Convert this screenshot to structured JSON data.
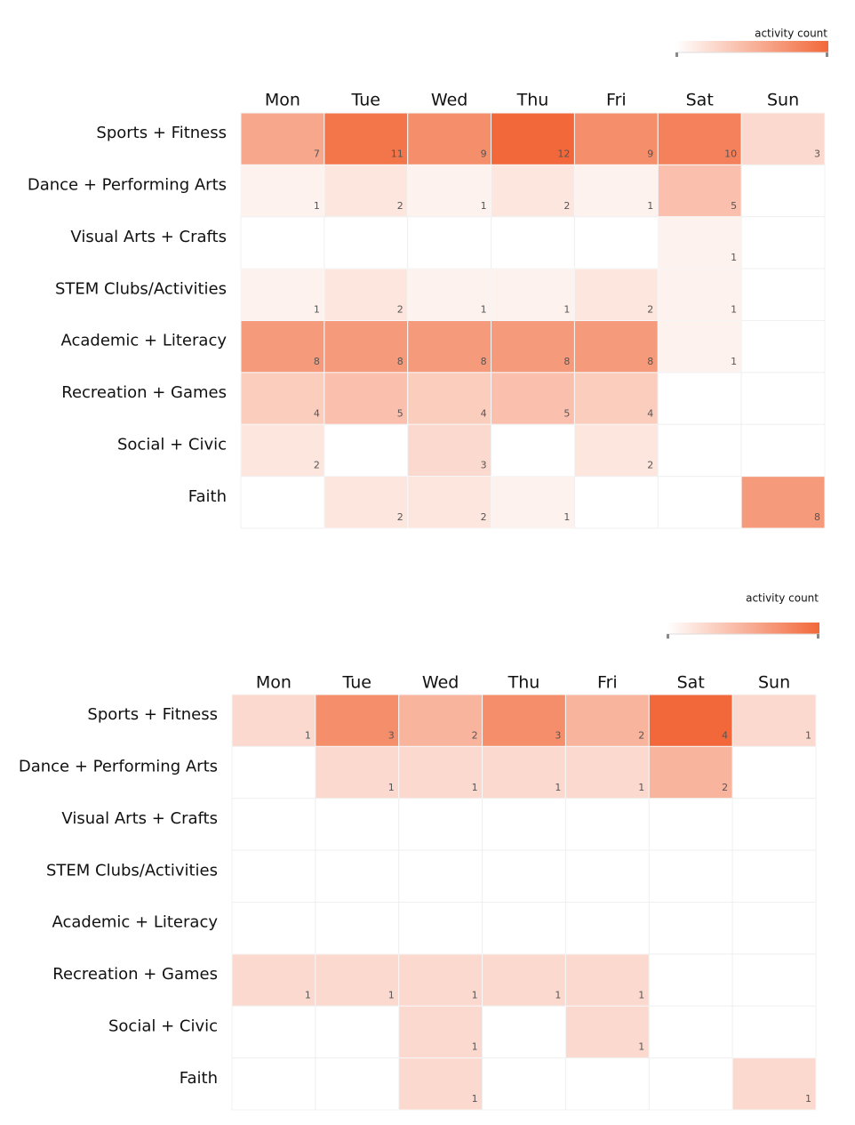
{
  "chart_data": [
    {
      "type": "heatmap",
      "legend_title": "activity count",
      "color_range": [
        "#ffffff",
        "#f2683a"
      ],
      "categories": [
        "Mon",
        "Tue",
        "Wed",
        "Thu",
        "Fri",
        "Sat",
        "Sun"
      ],
      "rows": [
        "Sports + Fitness",
        "Dance + Performing Arts",
        "Visual Arts + Crafts",
        "STEM Clubs/Activities",
        "Academic + Literacy",
        "Recreation + Games",
        "Social + Civic",
        "Faith"
      ],
      "values": [
        [
          7,
          11,
          9,
          12,
          9,
          10,
          3
        ],
        [
          1,
          2,
          1,
          2,
          1,
          5,
          null
        ],
        [
          null,
          null,
          null,
          null,
          null,
          1,
          null
        ],
        [
          1,
          2,
          1,
          1,
          2,
          1,
          null
        ],
        [
          8,
          8,
          8,
          8,
          8,
          1,
          null
        ],
        [
          4,
          5,
          4,
          5,
          4,
          null,
          null
        ],
        [
          2,
          null,
          3,
          null,
          2,
          null,
          null
        ],
        [
          null,
          2,
          2,
          1,
          null,
          null,
          8
        ]
      ]
    },
    {
      "type": "heatmap",
      "legend_title": "activity count",
      "color_range": [
        "#ffffff",
        "#f2683a"
      ],
      "categories": [
        "Mon",
        "Tue",
        "Wed",
        "Thu",
        "Fri",
        "Sat",
        "Sun"
      ],
      "rows": [
        "Sports + Fitness",
        "Dance + Performing Arts",
        "Visual Arts + Crafts",
        "STEM Clubs/Activities",
        "Academic + Literacy",
        "Recreation + Games",
        "Social + Civic",
        "Faith"
      ],
      "values": [
        [
          1,
          3,
          2,
          3,
          2,
          4,
          1
        ],
        [
          null,
          1,
          1,
          1,
          1,
          2,
          null
        ],
        [
          null,
          null,
          null,
          null,
          null,
          null,
          null
        ],
        [
          null,
          null,
          null,
          null,
          null,
          null,
          null
        ],
        [
          null,
          null,
          null,
          null,
          null,
          null,
          null
        ],
        [
          1,
          1,
          1,
          1,
          1,
          null,
          null
        ],
        [
          null,
          null,
          1,
          null,
          1,
          null,
          null
        ],
        [
          null,
          null,
          1,
          null,
          null,
          null,
          1
        ]
      ]
    }
  ]
}
